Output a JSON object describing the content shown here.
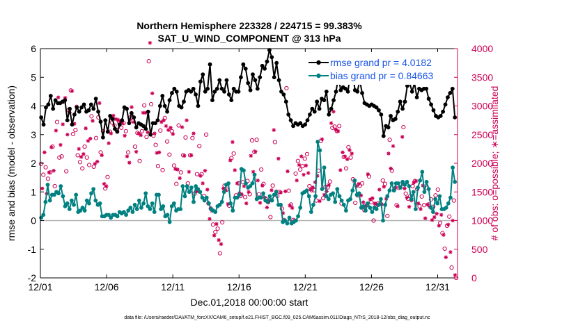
{
  "chart_data": {
    "type": "line",
    "title": "Northern Hemisphere 223328 / 224715 = 99.383%",
    "subtitle": "SAT_U_WIND_COMPONENT @ 313 hPa",
    "xlabel": "Dec.01,2018 00:00:00 start",
    "ylabel": "rmse and bias (model - observation)",
    "y2label": "# of obs: o=possible; ∗=assimilated",
    "footer": "data file: /Users/raeder/DAI/ATM_forcXX/CAM6_setup/f.e21.FHIST_BGC.f09_025.CAM6assim.011/Diags_NTrS_2018-12/obs_diag_output.nc",
    "xlim": [
      0,
      31.5
    ],
    "ylim": [
      -2,
      6
    ],
    "y2lim": [
      0,
      4000
    ],
    "x_ticks": [
      0,
      5,
      10,
      15,
      20,
      25,
      30
    ],
    "x_tick_labels": [
      "12/01",
      "12/06",
      "12/11",
      "12/16",
      "12/21",
      "12/26",
      "12/31"
    ],
    "y_ticks": [
      -2,
      -1,
      0,
      1,
      2,
      3,
      4,
      5,
      6
    ],
    "y2_ticks": [
      0,
      500,
      1000,
      1500,
      2000,
      2500,
      3000,
      3500,
      4000
    ],
    "legend_position": "top-right",
    "colors": {
      "rmse": "#000000",
      "bias": "#008080",
      "obs": "#cc0055",
      "zero_line": "#b0b0b0",
      "legend_text": "#1a56e8"
    },
    "series": [
      {
        "name": "rmse grand pr = 4.0182",
        "values": [
          3.6,
          3.35,
          3.95,
          4.05,
          4.35,
          3.9,
          4.2,
          4.1,
          4.1,
          4.15,
          4.2,
          3.5,
          3.9,
          3.35,
          3.7,
          3.95,
          3.8,
          3.95,
          4.05,
          3.8,
          3.85,
          4.05,
          3.9,
          4.25,
          3.8,
          3.45,
          2.9,
          3.5,
          3.1,
          3.65,
          3.55,
          3.2,
          3.1,
          3.35,
          3.5,
          3.95,
          3.9,
          3.4,
          3.75,
          3.6,
          3.25,
          3.4,
          3.35,
          3.3,
          3.2,
          3.8,
          3.0,
          3.4,
          3.4,
          3.5,
          4.0,
          4.35,
          4.0,
          3.8,
          4.2,
          4.45,
          4.6,
          4.5,
          4.0,
          3.95,
          4.15,
          4.5,
          4.55,
          4.5,
          4.6,
          4.4,
          4.0,
          4.85,
          5.1,
          4.5,
          4.6,
          5.45,
          4.2,
          4.5,
          4.6,
          4.9,
          4.6,
          4.5,
          4.9,
          4.4,
          4.2,
          4.6,
          4.5,
          4.5,
          5.0,
          5.45,
          5.3,
          4.8,
          4.55,
          5.1,
          4.9,
          4.6,
          5.0,
          5.4,
          5.3,
          5.55,
          5.95,
          5.7,
          5.0,
          5.5,
          4.9,
          4.5,
          4.4,
          4.15,
          3.7,
          3.5,
          3.3,
          3.4,
          3.35,
          3.4,
          3.3,
          3.35,
          3.5,
          3.7,
          3.9,
          3.8,
          4.15,
          3.9,
          4.25,
          4.2,
          4.5,
          3.7,
          3.9,
          4.2,
          4.5,
          5.0,
          4.55,
          4.65,
          4.6,
          4.5,
          5.1,
          5.15,
          4.55,
          4.5,
          4.9,
          4.45,
          4.1,
          4.05,
          4.0,
          4.05,
          4.0,
          3.95,
          3.85,
          3.7,
          2.95,
          3.3,
          3.25,
          3.65,
          3.5,
          3.55,
          3.8,
          4.15,
          3.9,
          4.15,
          4.7,
          4.8,
          4.5,
          4.8,
          4.3,
          4.6,
          4.55,
          4.6,
          4.6,
          4.25,
          4.05,
          3.85,
          3.65,
          3.6,
          3.65,
          3.8,
          4.05,
          4.3,
          4.45,
          4.6,
          3.6
        ]
      },
      {
        "name": "bias grand pr = 0.84663",
        "values": [
          0.1,
          0.2,
          0.65,
          1.25,
          0.7,
          0.9,
          0.9,
          1.0,
          0.95,
          1.2,
          0.85,
          0.5,
          0.6,
          0.4,
          0.7,
          0.55,
          0.9,
          0.3,
          0.35,
          0.45,
          0.35,
          0.7,
          0.6,
          0.95,
          1.1,
          0.7,
          0.55,
          0.6,
          0.15,
          0.15,
          0.2,
          0.2,
          0.1,
          0.2,
          0.2,
          0.15,
          0.3,
          0.25,
          0.3,
          0.2,
          0.35,
          0.45,
          0.3,
          0.55,
          0.4,
          0.7,
          0.45,
          0.6,
          0.95,
          0.5,
          0.4,
          0.6,
          0.3,
          0.9,
          0.9,
          0.4,
          0.5,
          0.15,
          0.2,
          -0.05,
          0.5,
          0.6,
          0.35,
          0.4,
          0.4,
          1.2,
          0.85,
          1.2,
          1.0,
          1.15,
          0.65,
          1.2,
          1.1,
          1.0,
          0.8,
          0.7,
          0.8,
          0.6,
          0.4,
          0.35,
          0.3,
          0.5,
          0.55,
          0.65,
          1.0,
          1.25,
          1.3,
          0.6,
          0.35,
          0.8,
          0.8,
          0.9,
          1.8,
          1.75,
          1.3,
          1.15,
          1.2,
          1.3,
          1.6,
          0.75,
          0.8,
          0.8,
          0.95,
          0.7,
          0.65,
          0.85,
          0.7,
          0.9,
          1.0,
          0.55,
          0.55,
          -0.05,
          0.0,
          -0.1,
          0.1,
          -0.1,
          -0.05,
          0.0,
          0.15,
          0.45,
          0.95,
          1.0,
          1.05,
          0.85,
          0.3,
          0.55,
          0.85,
          2.75,
          2.45,
          1.1,
          1.85,
          0.85,
          0.75,
          0.9,
          0.95,
          0.65,
          1.1,
          0.85,
          0.7,
          0.55,
          0.35,
          0.7,
          0.75,
          1.05,
          1.4,
          0.9,
          0.95,
          0.45,
          0.5,
          0.35,
          0.6,
          0.45,
          0.3,
          0.45,
          0.4,
          0.55,
          0.75,
          0.0,
          0.55,
          0.85,
          1.05,
          1.3,
          1.05,
          1.3,
          1.3,
          1.15,
          1.35,
          1.25,
          1.35,
          1.2,
          0.75,
          1.0,
          0.4,
          1.15,
          1.4,
          1.7,
          1.0,
          1.35,
          1.1,
          0.45,
          0.3,
          0.75,
          0.6,
          0.85,
          0.4,
          0.4,
          0.45,
          0.6,
          0.8,
          1.85,
          1.35
        ]
      },
      {
        "name": "# of obs",
        "axis": "right",
        "values": [
          1990,
          1560,
          1800,
          2190,
          1930,
          1470,
          1730,
          1840,
          1840,
          2280,
          2290,
          1870,
          1600,
          2570,
          2720,
          3150,
          2100,
          2320,
          2120,
          2680,
          3070,
          3140,
          1860,
          2500,
          2930,
          2890,
          3270,
          3260,
          2510,
          2690,
          2580,
          2990,
          2140,
          2250,
          2020,
          2110,
          1910,
          2160,
          2290,
          2610,
          2100,
          2390,
          1970,
          2430,
          2820,
          2740,
          1940,
          1990,
          2440,
          2030,
          2800,
          3050,
          2190,
          2140,
          2560,
          1640,
          1560,
          1600,
          1760,
          2350,
          2550,
          2520,
          2710,
          2830,
          2660,
          2770,
          2580,
          2760,
          2720,
          2730,
          2620,
          2700,
          2700,
          2480,
          2560,
          2120,
          2190,
          2010,
          2800,
          2980,
          2740,
          2720,
          2290,
          2200,
          2530,
          2520,
          2040,
          2490,
          2560,
          2880,
          3010,
          2880,
          2460,
          2540,
          3780,
          4100,
          3030,
          3220,
          2480,
          2520,
          2320,
          2180,
          1950,
          2190,
          2570,
          2720,
          1880,
          2750,
          2790,
          2650,
          2380,
          2580,
          2150,
          2620,
          2560,
          2510,
          1960,
          1900,
          1640,
          1890,
          2660,
          1740,
          1840,
          2630,
          2140,
          2130,
          2450,
          2750,
          1650,
          1850,
          2140,
          2140,
          2440,
          2520,
          1470,
          1510,
          1810,
          1510,
          2300,
          1780,
          1810,
          1650,
          1430,
          1870,
          2500,
          1540,
          1300,
          1030,
          1210,
          1170,
          930,
          740,
          800,
          940,
          860,
          660,
          430,
          590,
          970,
          1560,
          1610,
          1530,
          1540,
          1290,
          1260,
          2050,
          2090,
          2370,
          2170,
          1880,
          1440,
          1650,
          1650,
          1480,
          1430,
          1460,
          1670,
          1600,
          1410,
          1300,
          1690,
          1500,
          1460,
          2130,
          2400,
          1850,
          2200,
          2200,
          2410,
          1700,
          1460,
          1310,
          1890,
          1610,
          1640,
          1400,
          1380,
          1230,
          1320,
          1350,
          1060,
          1530,
          1610,
          2580,
          2370,
          1510,
          1430,
          2080,
          1500,
          1490,
          1210,
          1130,
          1010,
          1510,
          3310,
          1860,
          1520,
          1260,
          1280,
          1220,
          1010,
          1000,
          1820,
          1700,
          2040,
          1970,
          1890,
          2120,
          1950,
          1800,
          2080,
          1960,
          2160,
          1830,
          1600,
          1540,
          1530,
          1580,
          1530,
          1670,
          1350,
          1780,
          1870,
          1340,
          2390,
          2420,
          1390,
          1450,
          1590,
          1510,
          1580,
          1620,
          1680,
          2700,
          2620,
          2900,
          2640,
          2590,
          2560,
          2560,
          2650,
          1880,
          1300,
          2190,
          2110,
          2120,
          1910,
          2070,
          2280,
          2230,
          2100,
          2170,
          1720,
          1690,
          1310,
          1600,
          1440,
          1640,
          1610,
          1440,
          1650,
          1320,
          1180,
          1250,
          1270,
          1810,
          1770,
          1370,
          1320,
          1390,
          1000,
          1300,
          1280,
          1280,
          1300,
          1540,
          1300,
          1280,
          1700,
          1590,
          1640,
          1380,
          1080,
          2170,
          2410,
          1910,
          1870,
          2300,
          1540,
          1580,
          1270,
          1250,
          1570,
          1580,
          1630,
          2460,
          2630,
          1560,
          1470,
          1400,
          1380,
          1240,
          1430,
          1350,
          1600,
          1660,
          1690,
          1690,
          1550,
          1300,
          1250,
          1200,
          1420,
          1610,
          1270,
          1040,
          1570,
          1280,
          1280,
          1240,
          1370,
          1010,
          1240,
          1060,
          1440,
          1120,
          1540,
          910,
          960,
          1100,
          780,
          750,
          510,
          360,
          910,
          930,
          1070,
          450,
          180,
          1000,
          1350,
          50,
          0
        ]
      }
    ]
  }
}
